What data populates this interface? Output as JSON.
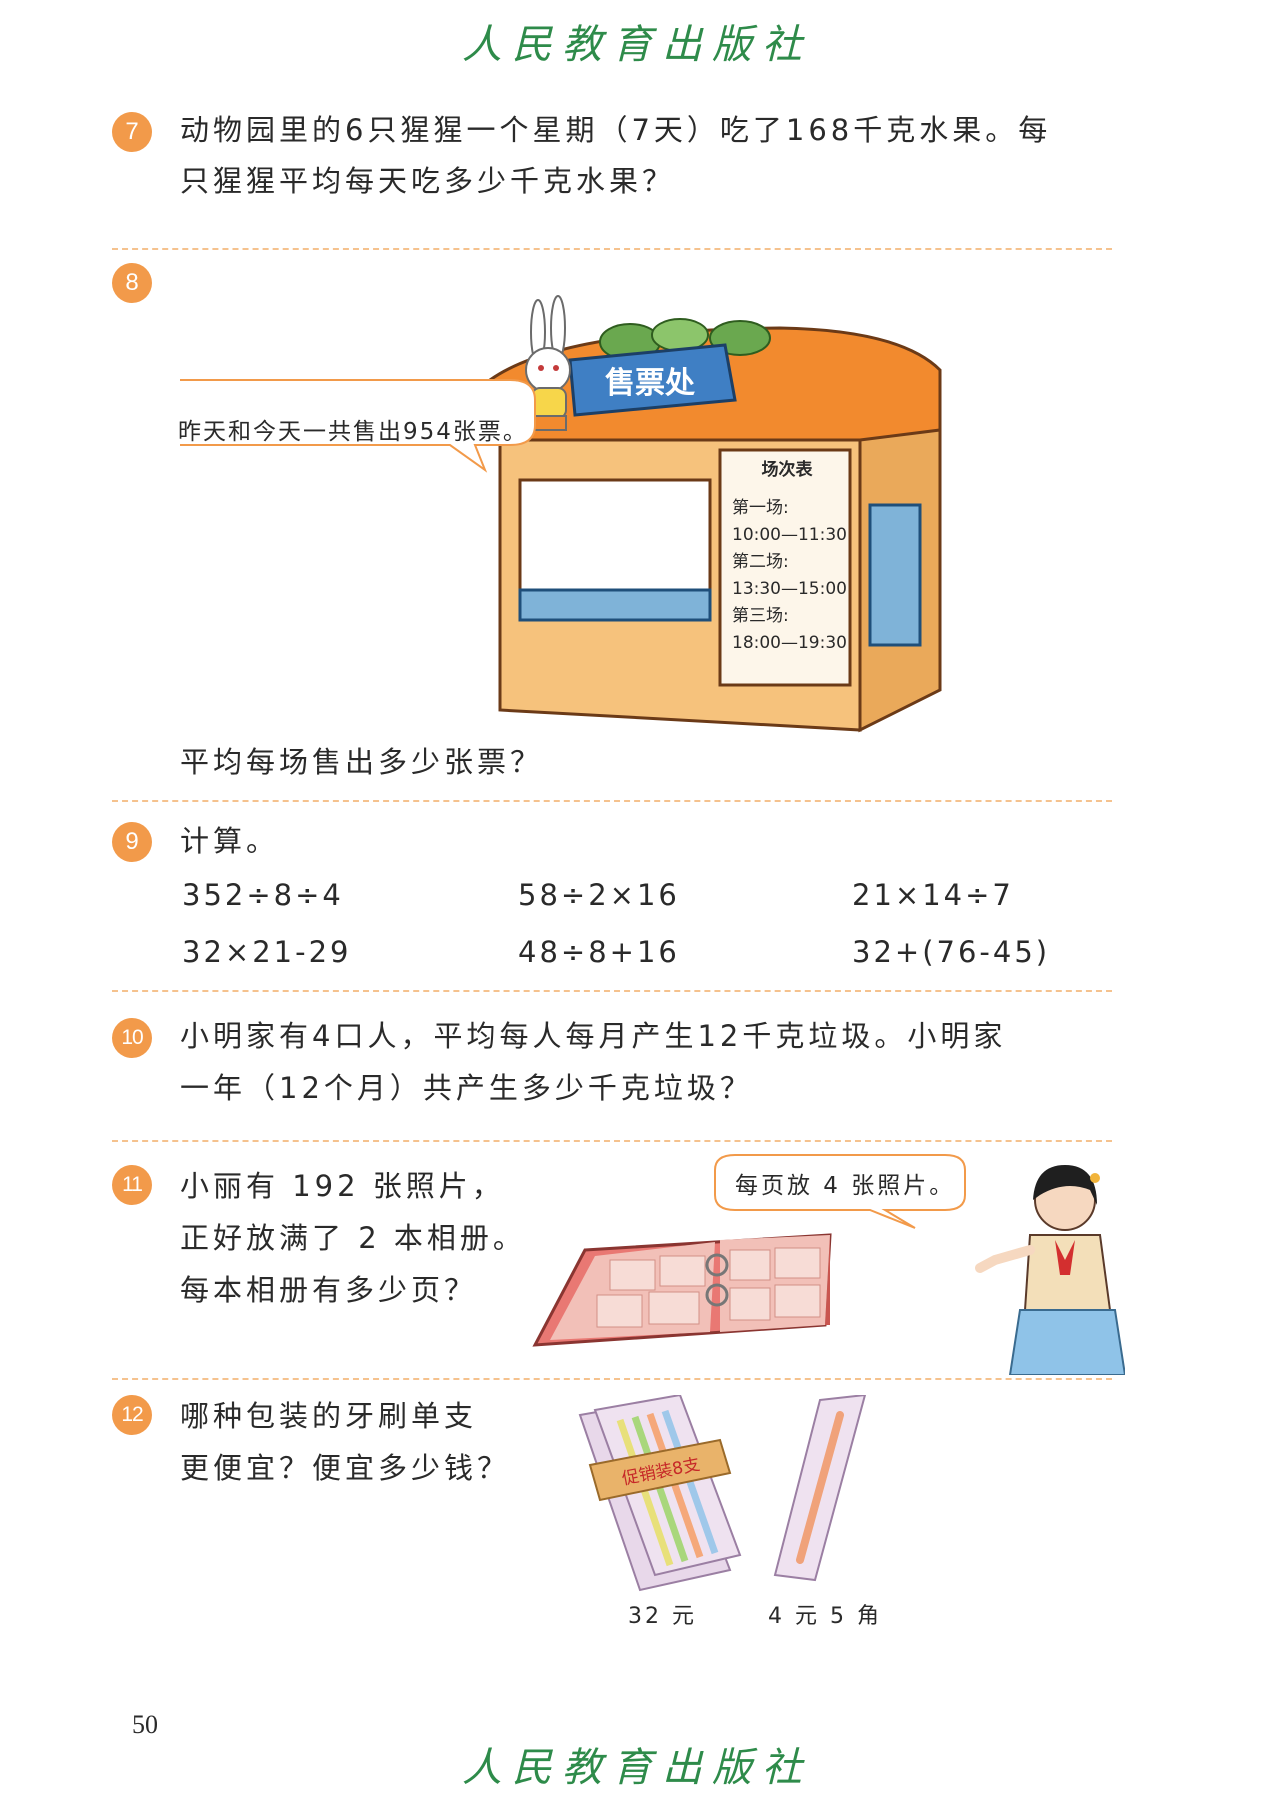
{
  "header": {
    "publisher": "人民教育出版社"
  },
  "problems": {
    "p7": {
      "number": "7",
      "line1": "动物园里的6只猩猩一个星期（7天）吃了168千克水果。每",
      "line2": "只猩猩平均每天吃多少千克水果？"
    },
    "p8": {
      "number": "8",
      "booth_sign": "售票处",
      "speech": "昨天和今天一共售出954张票。",
      "schedule": {
        "title": "场次表",
        "items": [
          "第一场:",
          "10:00—11:30",
          "第二场:",
          "13:30—15:00",
          "第三场:",
          "18:00—19:30"
        ]
      },
      "question": "平均每场售出多少张票？"
    },
    "p9": {
      "number": "9",
      "instruction": "计算。",
      "expressions": [
        "352÷8÷4",
        "58÷2×16",
        "21×14÷7",
        "32×21-29",
        "48÷8+16",
        "32+(76-45)"
      ]
    },
    "p10": {
      "number": "10",
      "line1": "小明家有4口人，平均每人每月产生12千克垃圾。小明家",
      "line2": "一年（12个月）共产生多少千克垃圾？"
    },
    "p11": {
      "number": "11",
      "line1": "小丽有 192 张照片，",
      "line2": "正好放满了 2 本相册。",
      "line3": "每本相册有多少页？",
      "speech": "每页放 4 张照片。"
    },
    "p12": {
      "number": "12",
      "line1": "哪种包装的牙刷单支",
      "line2": "更便宜？便宜多少钱？",
      "pack_label": "促销装8支",
      "price_pack": "32 元",
      "price_single": "4 元 5 角"
    }
  },
  "footer": {
    "page_number": "50",
    "publisher": "人民教育出版社"
  },
  "colors": {
    "accent": "#f29a4a",
    "publisher_green": "#2e8b4a",
    "separator": "#f5c28e"
  }
}
